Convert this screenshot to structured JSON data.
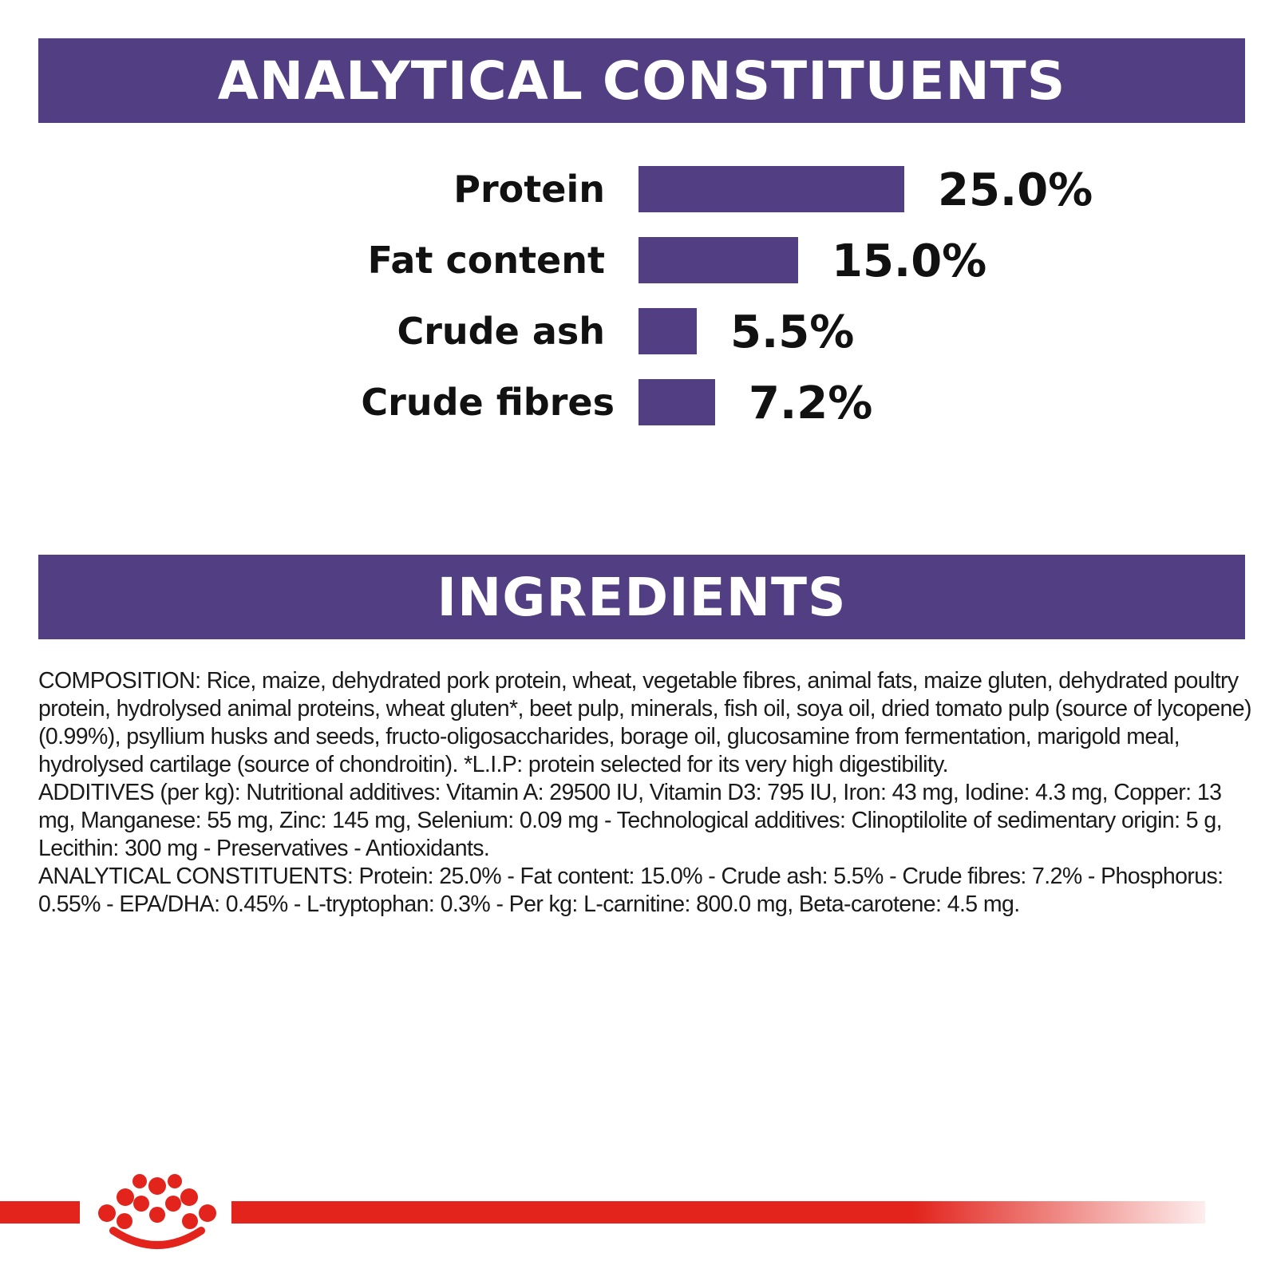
{
  "sections": {
    "analytical_title": "ANALYTICAL CONSTITUENTS",
    "ingredients_title": "INGREDIENTS"
  },
  "colors": {
    "banner": "#523e82",
    "bar": "#523e82",
    "brand_red": "#e2241c"
  },
  "chart_data": {
    "type": "bar",
    "orientation": "horizontal",
    "categories": [
      "Protein",
      "Fat content",
      "Crude ash",
      "Crude fibres"
    ],
    "values": [
      25.0,
      15.0,
      5.5,
      7.2
    ],
    "value_labels": [
      "25.0%",
      "15.0%",
      "5.5%",
      "7.2%"
    ],
    "unit": "%",
    "xlim": [
      0,
      25
    ],
    "grid": false,
    "legend": "none"
  },
  "ingredients": {
    "composition": "COMPOSITION: Rice, maize, dehydrated pork protein, wheat, vegetable fibres, animal fats, maize gluten, dehydrated poultry protein, hydrolysed animal proteins, wheat gluten*, beet pulp, minerals, fish oil, soya oil, dried tomato pulp (source of lycopene) (0.99%), psyllium husks and seeds, fructo-oligosaccharides, borage oil, glucosamine from fermentation, marigold meal, hydrolysed cartilage (source of chondroitin). *L.I.P: protein selected for its very high digestibility.",
    "additives": "ADDITIVES (per kg): Nutritional additives: Vitamin A: 29500 IU, Vitamin D3: 795 IU, Iron: 43 mg, Iodine: 4.3 mg, Copper: 13 mg, Manganese: 55 mg, Zinc: 145 mg, Selenium: 0.09 mg - Technological additives: Clinoptilolite of sedimentary origin: 5 g, Lecithin: 300 mg - Preservatives - Antioxidants.",
    "analytical": "ANALYTICAL CONSTITUENTS: Protein: 25.0% - Fat content: 15.0% - Crude ash: 5.5% - Crude fibres: 7.2% - Phosphorus: 0.55% - EPA/DHA: 0.45% - L-tryptophan: 0.3% - Per kg: L-carnitine: 800.0 mg, Beta-carotene: 4.5 mg."
  },
  "footer": {
    "logo_icon": "royal-canin-crown-icon"
  }
}
